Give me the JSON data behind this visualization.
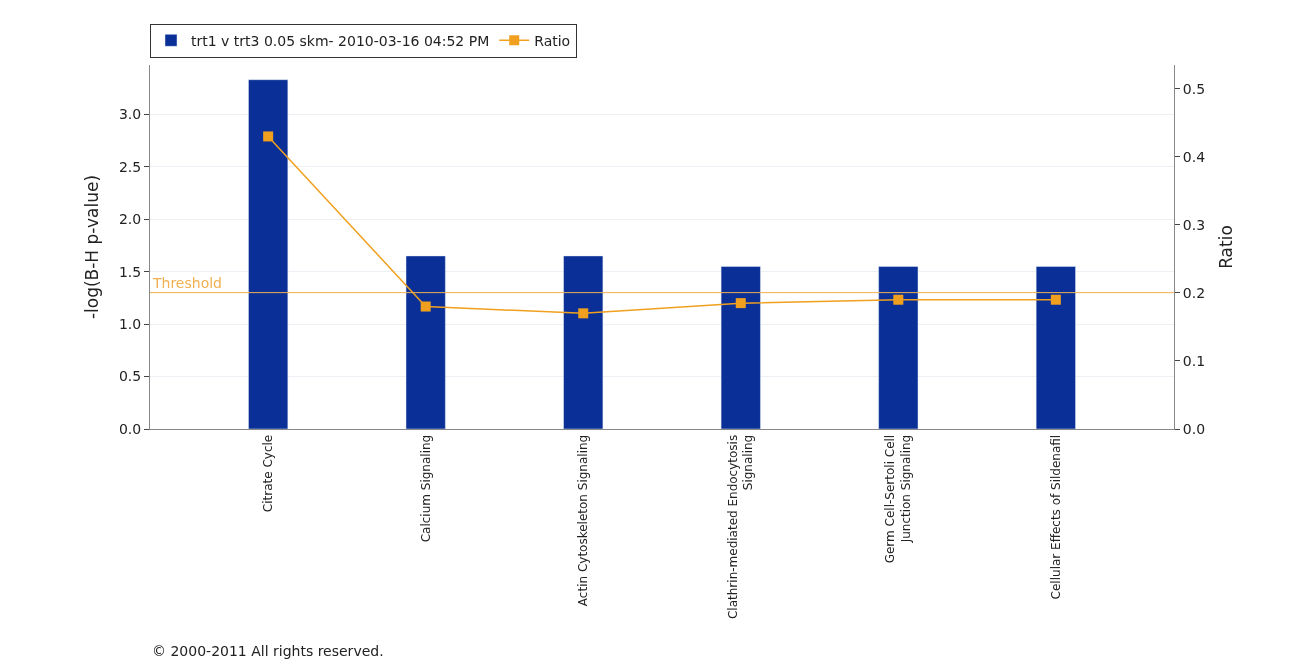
{
  "chart_data": {
    "type": "bar",
    "categories": [
      "Citrate Cycle",
      "Calcium Signaling",
      "Actin Cytoskeleton Signaling",
      "Clathrin-mediated Endocytosis Signaling",
      "Germ Cell-Sertoli Cell Junction Signaling",
      "Cellular Effects of Sildenafil"
    ],
    "series": [
      {
        "name": "trt1 v trt3 0.05 skm- 2010-03-16 04:52 PM",
        "color": "#0a2f96",
        "values": [
          3.33,
          1.65,
          1.65,
          1.55,
          1.55,
          1.55
        ]
      },
      {
        "name": "Ratio",
        "type": "line",
        "axis": "y2",
        "color": "#f0a01e",
        "marker": "square",
        "values": [
          0.43,
          0.18,
          0.17,
          0.185,
          0.19,
          0.19
        ]
      }
    ],
    "ylabel": "-log(B-H p-value)",
    "y2label": "Ratio",
    "ylim": [
      0,
      3.47
    ],
    "yticks": [
      {
        "value": 0,
        "label": "0.0"
      },
      0.5,
      {
        "value": 1,
        "label": "1.0"
      },
      1.5,
      {
        "value": 2,
        "label": "2.0"
      },
      2.5,
      {
        "value": 3,
        "label": "3.0"
      }
    ],
    "y2lim": [
      0,
      0.535
    ],
    "y2ticks": [
      {
        "value": 0,
        "label": "0.0"
      },
      0.1,
      0.2,
      0.3,
      0.4,
      0.5
    ],
    "ref_lines": [
      {
        "axis": "y",
        "value": 1.3,
        "label": "Threshold",
        "color": "#f0b050"
      }
    ],
    "grid": "y",
    "legend": "top left",
    "annotations": [
      "© 2000-2011 All rights reserved."
    ]
  }
}
